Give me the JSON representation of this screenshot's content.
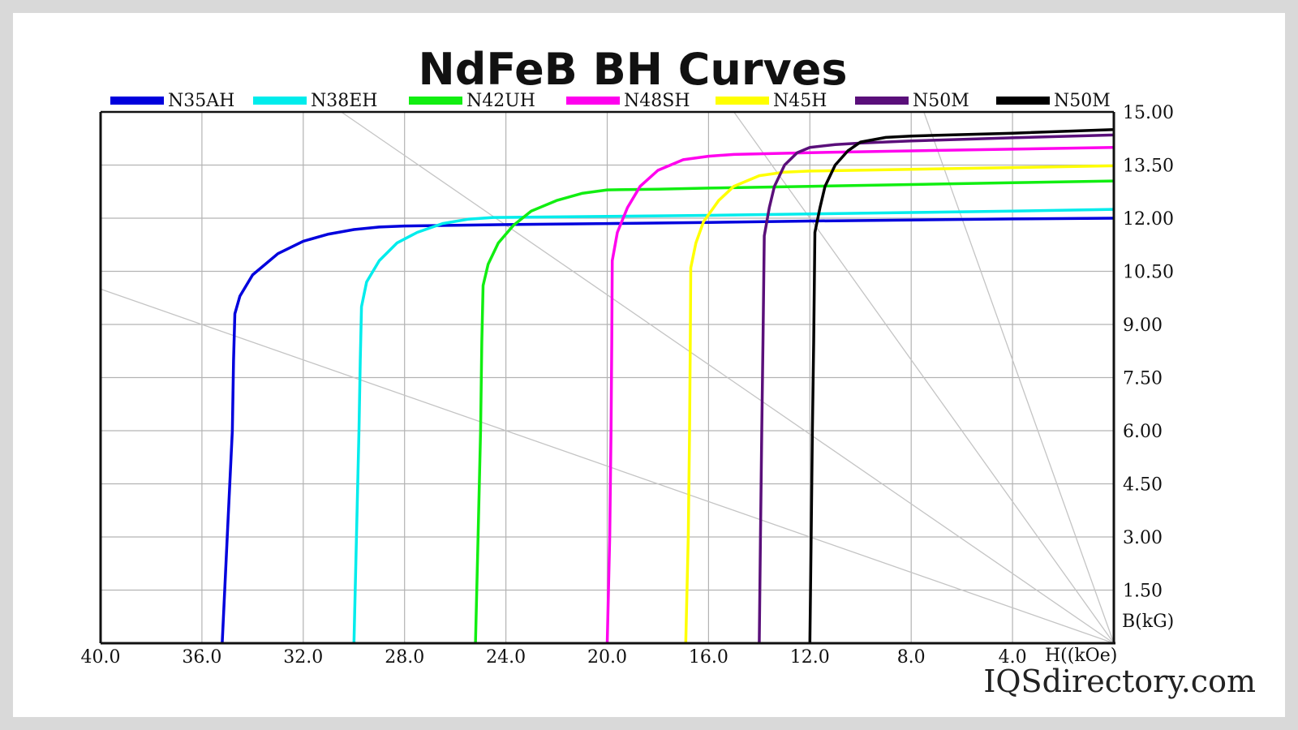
{
  "chart_data": {
    "type": "line",
    "title": "NdFeB BH Curves",
    "xlabel": "H((kOe)",
    "ylabel": "B(kG)",
    "xlim": [
      40,
      0
    ],
    "ylim": [
      0,
      15
    ],
    "x_axis_reversed": true,
    "x_ticks": [
      "40.0",
      "36.0",
      "32.0",
      "28.0",
      "24.0",
      "20.0",
      "16.0",
      "12.0",
      "8.0",
      "4.0"
    ],
    "x_tick_values": [
      40,
      36,
      32,
      28,
      24,
      20,
      16,
      12,
      8,
      4
    ],
    "y_ticks": [
      "15.00",
      "13.50",
      "12.00",
      "10.50",
      "9.00",
      "7.50",
      "6.00",
      "4.50",
      "3.00",
      "1.50"
    ],
    "y_tick_values": [
      15,
      13.5,
      12,
      10.5,
      9,
      7.5,
      6,
      4.5,
      3,
      1.5
    ],
    "grid": true,
    "legend_position": "top",
    "series": [
      {
        "name": "N35AH",
        "color": "#0000dd",
        "points": [
          [
            35.2,
            0
          ],
          [
            35,
            3
          ],
          [
            34.8,
            6
          ],
          [
            34.75,
            8
          ],
          [
            34.7,
            9.3
          ],
          [
            34.5,
            9.8
          ],
          [
            34,
            10.4
          ],
          [
            33,
            11
          ],
          [
            32,
            11.35
          ],
          [
            31,
            11.55
          ],
          [
            30,
            11.68
          ],
          [
            29,
            11.75
          ],
          [
            28,
            11.78
          ],
          [
            24,
            11.82
          ],
          [
            20,
            11.85
          ],
          [
            16,
            11.88
          ],
          [
            12,
            11.92
          ],
          [
            8,
            11.95
          ],
          [
            4,
            11.98
          ],
          [
            0,
            12.0
          ]
        ]
      },
      {
        "name": "N38EH",
        "color": "#00ecec",
        "points": [
          [
            30.0,
            0
          ],
          [
            29.9,
            3
          ],
          [
            29.8,
            6
          ],
          [
            29.75,
            8
          ],
          [
            29.7,
            9.5
          ],
          [
            29.5,
            10.2
          ],
          [
            29,
            10.8
          ],
          [
            28.3,
            11.3
          ],
          [
            27.5,
            11.6
          ],
          [
            26.5,
            11.85
          ],
          [
            25.5,
            11.97
          ],
          [
            24.5,
            12.02
          ],
          [
            20,
            12.05
          ],
          [
            16,
            12.08
          ],
          [
            12,
            12.12
          ],
          [
            8,
            12.16
          ],
          [
            4,
            12.2
          ],
          [
            0,
            12.25
          ]
        ]
      },
      {
        "name": "N42UH",
        "color": "#11ee11",
        "points": [
          [
            25.2,
            0
          ],
          [
            25.1,
            3
          ],
          [
            25.0,
            6
          ],
          [
            24.95,
            8.5
          ],
          [
            24.9,
            10.1
          ],
          [
            24.7,
            10.7
          ],
          [
            24.3,
            11.3
          ],
          [
            23.7,
            11.8
          ],
          [
            23,
            12.2
          ],
          [
            22,
            12.5
          ],
          [
            21,
            12.7
          ],
          [
            20,
            12.8
          ],
          [
            18,
            12.82
          ],
          [
            16,
            12.85
          ],
          [
            12,
            12.9
          ],
          [
            8,
            12.95
          ],
          [
            4,
            13.0
          ],
          [
            0,
            13.05
          ]
        ]
      },
      {
        "name": "N48SH",
        "color": "#ff00ee",
        "points": [
          [
            20.0,
            0
          ],
          [
            19.9,
            3
          ],
          [
            19.85,
            6
          ],
          [
            19.82,
            8.5
          ],
          [
            19.8,
            10.8
          ],
          [
            19.6,
            11.6
          ],
          [
            19.2,
            12.3
          ],
          [
            18.7,
            12.9
          ],
          [
            18,
            13.35
          ],
          [
            17,
            13.65
          ],
          [
            16,
            13.75
          ],
          [
            15,
            13.8
          ],
          [
            12,
            13.85
          ],
          [
            8,
            13.9
          ],
          [
            4,
            13.95
          ],
          [
            0,
            14.0
          ]
        ]
      },
      {
        "name": "N45H",
        "color": "#ffff00",
        "points": [
          [
            16.9,
            0
          ],
          [
            16.8,
            3
          ],
          [
            16.75,
            6
          ],
          [
            16.72,
            8.5
          ],
          [
            16.7,
            10.6
          ],
          [
            16.5,
            11.3
          ],
          [
            16.2,
            11.9
          ],
          [
            15.6,
            12.5
          ],
          [
            15,
            12.9
          ],
          [
            14,
            13.2
          ],
          [
            13,
            13.3
          ],
          [
            12,
            13.33
          ],
          [
            8,
            13.38
          ],
          [
            4,
            13.43
          ],
          [
            0,
            13.48
          ]
        ]
      },
      {
        "name": "N50M",
        "color": "#5a0f7a",
        "points": [
          [
            14.0,
            0
          ],
          [
            13.95,
            3
          ],
          [
            13.9,
            6
          ],
          [
            13.85,
            8.5
          ],
          [
            13.8,
            11.5
          ],
          [
            13.6,
            12.3
          ],
          [
            13.4,
            12.9
          ],
          [
            13,
            13.5
          ],
          [
            12.5,
            13.85
          ],
          [
            12,
            14.0
          ],
          [
            11,
            14.08
          ],
          [
            10,
            14.12
          ],
          [
            8,
            14.18
          ],
          [
            4,
            14.27
          ],
          [
            0,
            14.35
          ]
        ]
      },
      {
        "name": "N50M",
        "color": "#000000",
        "points": [
          [
            12.0,
            0
          ],
          [
            11.95,
            3
          ],
          [
            11.9,
            6
          ],
          [
            11.85,
            8.5
          ],
          [
            11.8,
            11.6
          ],
          [
            11.6,
            12.3
          ],
          [
            11.4,
            12.9
          ],
          [
            11,
            13.5
          ],
          [
            10.5,
            13.9
          ],
          [
            10,
            14.15
          ],
          [
            9,
            14.28
          ],
          [
            8,
            14.32
          ],
          [
            4,
            14.4
          ],
          [
            0,
            14.5
          ]
        ]
      }
    ],
    "reference_lines": [
      {
        "from": [
          40,
          10.0
        ],
        "to": [
          0,
          0
        ]
      },
      {
        "from": [
          30.5,
          15.0
        ],
        "to": [
          0,
          0
        ]
      },
      {
        "from": [
          15.0,
          15.0
        ],
        "to": [
          0,
          0
        ]
      },
      {
        "from": [
          7.5,
          15.0
        ],
        "to": [
          0,
          0
        ]
      }
    ]
  },
  "watermark": "IQSdirectory.com",
  "colors": {
    "grid": "#b3b3b3",
    "axis": "#111111",
    "reference_line": "#c4c4c4",
    "background": "#ffffff",
    "frame": "#d9d9d9"
  }
}
